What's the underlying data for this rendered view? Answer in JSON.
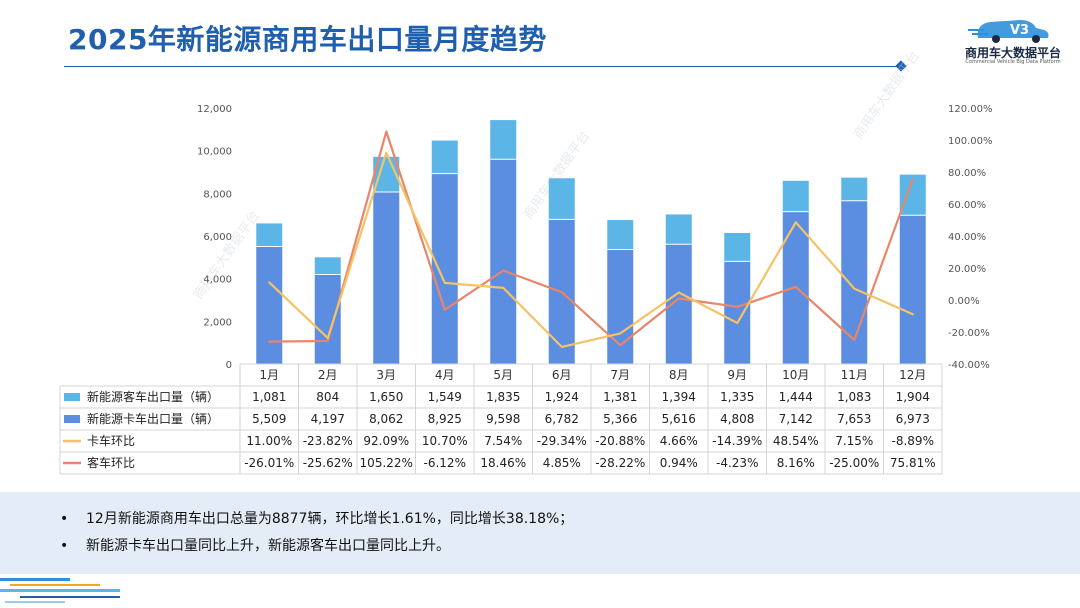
{
  "page": {
    "title": "2025年新能源商用车出口量月度趋势",
    "logo": {
      "name": "商用车大数据平台",
      "subtitle": "Commercial Vehicle Big Data Platform",
      "mark": "V3"
    }
  },
  "chart_data": {
    "type": "bar",
    "stacked": true,
    "categories": [
      "1月",
      "2月",
      "3月",
      "4月",
      "5月",
      "6月",
      "7月",
      "8月",
      "9月",
      "10月",
      "11月",
      "12月"
    ],
    "series": [
      {
        "name": "新能源客车出口量（辆）",
        "kind": "bar",
        "axis": "left",
        "color": "#5bb5e6",
        "values": [
          1081,
          804,
          1650,
          1549,
          1835,
          1924,
          1381,
          1394,
          1335,
          1444,
          1083,
          1904
        ],
        "labels": [
          "1,081",
          "804",
          "1,650",
          "1,549",
          "1,835",
          "1,924",
          "1,381",
          "1,394",
          "1,335",
          "1,444",
          "1,083",
          "1,904"
        ]
      },
      {
        "name": "新能源卡车出口量（辆）",
        "kind": "bar",
        "axis": "left",
        "color": "#5b8ee0",
        "values": [
          5509,
          4197,
          8062,
          8925,
          9598,
          6782,
          5366,
          5616,
          4808,
          7142,
          7653,
          6973
        ],
        "labels": [
          "5,509",
          "4,197",
          "8,062",
          "8,925",
          "9,598",
          "6,782",
          "5,366",
          "5,616",
          "4,808",
          "7,142",
          "7,653",
          "6,973"
        ]
      },
      {
        "name": "卡车环比",
        "kind": "line",
        "axis": "right",
        "color": "#f5c265",
        "values": [
          11.0,
          -23.82,
          92.09,
          10.7,
          7.54,
          -29.34,
          -20.88,
          4.66,
          -14.39,
          48.54,
          7.15,
          -8.89
        ],
        "labels": [
          "11.00%",
          "-23.82%",
          "92.09%",
          "10.70%",
          "7.54%",
          "-29.34%",
          "-20.88%",
          "4.66%",
          "-14.39%",
          "48.54%",
          "7.15%",
          "-8.89%"
        ]
      },
      {
        "name": "客车环比",
        "kind": "line",
        "axis": "right",
        "color": "#e8866b",
        "values": [
          -26.01,
          -25.62,
          105.22,
          -6.12,
          18.46,
          4.85,
          -28.22,
          0.94,
          -4.23,
          8.16,
          -25.0,
          75.81
        ],
        "labels": [
          "-26.01%",
          "-25.62%",
          "105.22%",
          "-6.12%",
          "18.46%",
          "4.85%",
          "-28.22%",
          "0.94%",
          "-4.23%",
          "8.16%",
          "-25.00%",
          "75.81%"
        ]
      }
    ],
    "y_left": {
      "ylim": [
        0,
        12000
      ],
      "ticks": [
        "0",
        "2,000",
        "4,000",
        "6,000",
        "8,000",
        "10,000",
        "12,000"
      ]
    },
    "y_right": {
      "ylim": [
        -40,
        120
      ],
      "ticks": [
        "-40.00%",
        "-20.00%",
        "0.00%",
        "20.00%",
        "40.00%",
        "60.00%",
        "80.00%",
        "100.00%",
        "120.00%"
      ]
    },
    "grid": false,
    "legend": "data table below chart",
    "watermark": "商用车大数据平台"
  },
  "notes": [
    "12月新能源商用车出口总量为8877辆，环比增长1.61%，同比增长38.18%；",
    "新能源卡车出口量同比上升，新能源客车出口量同比上升。"
  ],
  "colors": {
    "title": "#1f5fae",
    "panel": "#e4edf7"
  }
}
